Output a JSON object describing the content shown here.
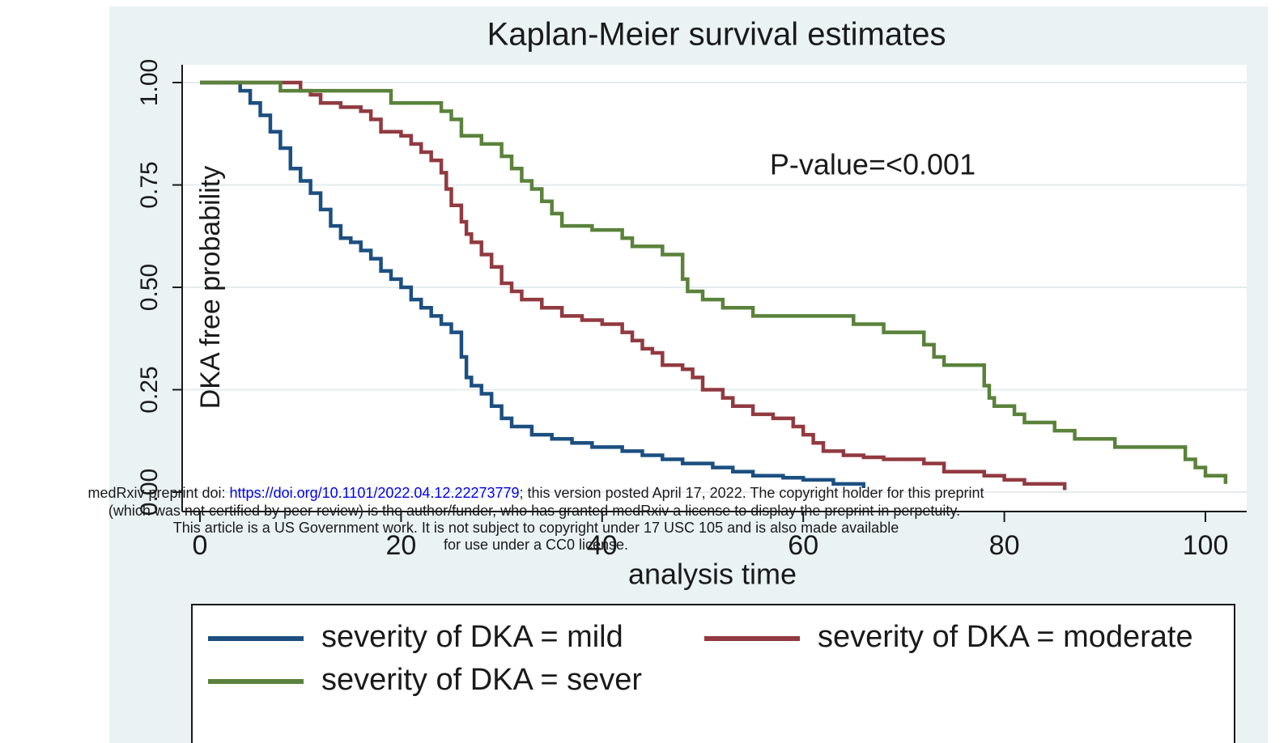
{
  "chart_data": {
    "type": "step",
    "title": "Kaplan-Meier survival estimates",
    "xlabel": "analysis time",
    "ylabel": "DKA free probability",
    "annotation": "P-value=<0.001",
    "xlim": [
      0,
      100
    ],
    "ylim": [
      0,
      1
    ],
    "xticks": [
      0,
      20,
      40,
      60,
      80,
      100
    ],
    "yticks": [
      {
        "value": 0,
        "label": "0.00"
      },
      {
        "value": 0.25,
        "label": "0.25"
      },
      {
        "value": 0.5,
        "label": "0.50"
      },
      {
        "value": 0.75,
        "label": "0.75"
      },
      {
        "value": 1,
        "label": "1.00"
      }
    ],
    "grid": true,
    "legend": "bottom",
    "series": [
      {
        "name": "severity of DKA = mild",
        "color": "#1c4f80",
        "x": [
          0,
          4,
          5,
          6,
          7,
          8,
          9,
          10,
          11,
          12,
          13,
          14,
          15,
          16,
          17,
          18,
          19,
          20,
          21,
          22,
          23,
          24,
          25,
          26,
          26.5,
          27,
          28,
          29,
          30,
          31,
          33,
          35,
          37,
          39,
          42,
          44,
          46,
          48,
          51,
          53,
          55,
          58,
          60,
          63,
          66
        ],
        "values": [
          1,
          0.98,
          0.95,
          0.92,
          0.88,
          0.84,
          0.79,
          0.76,
          0.73,
          0.69,
          0.65,
          0.62,
          0.61,
          0.59,
          0.57,
          0.54,
          0.52,
          0.5,
          0.47,
          0.45,
          0.43,
          0.41,
          0.39,
          0.33,
          0.28,
          0.26,
          0.24,
          0.21,
          0.18,
          0.16,
          0.14,
          0.13,
          0.12,
          0.11,
          0.1,
          0.09,
          0.08,
          0.07,
          0.06,
          0.05,
          0.04,
          0.035,
          0.03,
          0.02,
          0.01
        ]
      },
      {
        "name": "severity of DKA = moderate",
        "color": "#913a40",
        "x": [
          0,
          10,
          11,
          12,
          14,
          16,
          17,
          18,
          20,
          21,
          22,
          23,
          24,
          24.5,
          25,
          26,
          26.5,
          27,
          28,
          29,
          30,
          31,
          32,
          34,
          36,
          38,
          40,
          42,
          43,
          44,
          45,
          46,
          48,
          49,
          50,
          52,
          53,
          55,
          57,
          59,
          60,
          61,
          62,
          64,
          66,
          68,
          72,
          74,
          78,
          80,
          82,
          86
        ],
        "values": [
          1,
          0.98,
          0.97,
          0.95,
          0.94,
          0.93,
          0.91,
          0.88,
          0.87,
          0.85,
          0.83,
          0.81,
          0.78,
          0.74,
          0.7,
          0.66,
          0.63,
          0.61,
          0.58,
          0.55,
          0.51,
          0.49,
          0.47,
          0.45,
          0.43,
          0.42,
          0.41,
          0.39,
          0.37,
          0.35,
          0.34,
          0.31,
          0.3,
          0.28,
          0.25,
          0.23,
          0.21,
          0.19,
          0.18,
          0.16,
          0.14,
          0.12,
          0.1,
          0.09,
          0.085,
          0.08,
          0.07,
          0.05,
          0.04,
          0.03,
          0.02,
          0.005
        ]
      },
      {
        "name": "severity of DKA = sever",
        "color": "#5a823b",
        "x": [
          0,
          8,
          19,
          24,
          25,
          26,
          28,
          30,
          31,
          32,
          33,
          34,
          35,
          36,
          39,
          42,
          43,
          46,
          48,
          48.5,
          50,
          52,
          55,
          65,
          68,
          72,
          73,
          74,
          78,
          78.5,
          79,
          81,
          82,
          85,
          87,
          91,
          98,
          99,
          100,
          102
        ],
        "values": [
          1,
          0.98,
          0.95,
          0.93,
          0.91,
          0.87,
          0.85,
          0.82,
          0.79,
          0.76,
          0.74,
          0.71,
          0.68,
          0.65,
          0.64,
          0.62,
          0.6,
          0.58,
          0.52,
          0.49,
          0.47,
          0.45,
          0.43,
          0.41,
          0.39,
          0.36,
          0.33,
          0.31,
          0.26,
          0.23,
          0.21,
          0.19,
          0.17,
          0.15,
          0.13,
          0.11,
          0.08,
          0.06,
          0.04,
          0.02
        ]
      }
    ]
  },
  "overlay": {
    "line1": [
      "medRxiv preprint doi: ",
      "https://doi.org/10.1101/2022.04.12.22273779",
      "; this version posted April 17, 2022. The copyright holder for this preprint"
    ],
    "line2": "(which was not certified by peer review) is the author/funder, who has granted medRxiv a license to display the preprint in perpetuity.",
    "line3": "This article is a US Government work. It is not subject to copyright under 17 USC 105 and is also made available",
    "line4": "for use under a CC0 license."
  }
}
